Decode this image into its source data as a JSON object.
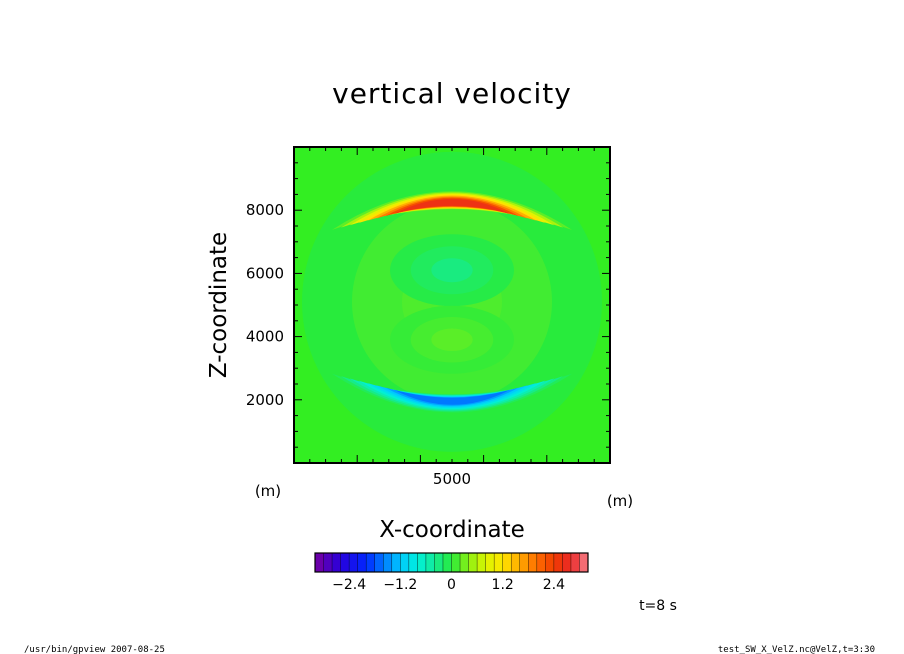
{
  "chart_data": {
    "type": "heatmap",
    "title": "vertical velocity",
    "xlabel": "X-coordinate",
    "ylabel": "Z-coordinate",
    "x_unit": "(m)",
    "y_unit": "(m)",
    "xlim": [
      0,
      10000
    ],
    "ylim": [
      0,
      10000
    ],
    "x_ticks": [
      5000
    ],
    "y_ticks": [
      2000,
      4000,
      6000,
      8000
    ],
    "features": [
      {
        "name": "upward-lobe",
        "x_center": 5000,
        "z_center": 8200,
        "peak": 2.6
      },
      {
        "name": "downward-lobe",
        "x_center": 5000,
        "z_center": 2000,
        "peak": -1.6
      },
      {
        "name": "weak-negative-center",
        "x_center": 5000,
        "z_center": 6100,
        "peak": -0.3
      },
      {
        "name": "weak-positive-center",
        "x_center": 5000,
        "z_center": 3900,
        "peak": 0.2
      }
    ],
    "colorbar": {
      "range": [
        -3.2,
        3.2
      ],
      "step": 0.2,
      "tick_values": [
        -2.4,
        -1.2,
        0,
        1.2,
        2.4
      ],
      "tick_labels": [
        "−2.4",
        "−1.2",
        "0",
        "1.2",
        "2.4"
      ]
    }
  },
  "annotations": {
    "time": "t=8 s",
    "footer_left": "/usr/bin/gpview  2007-08-25",
    "footer_right": "test_SW_X_VelZ.nc@VelZ,t=3:30"
  }
}
